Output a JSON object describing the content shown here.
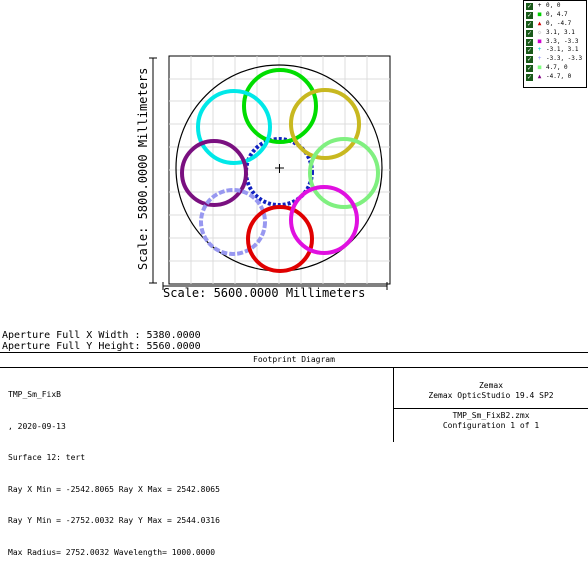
{
  "legend": {
    "items": [
      {
        "symbol": "+",
        "label": "0, 0",
        "color": "#000000"
      },
      {
        "symbol": "■",
        "label": "0, 4.7",
        "color": "#00d000"
      },
      {
        "symbol": "▲",
        "label": "0, -4.7",
        "color": "#d00000"
      },
      {
        "symbol": "◇",
        "label": "3.1, 3.1",
        "color": "#bbbbbb"
      },
      {
        "symbol": "■",
        "label": "3.3, -3.3",
        "color": "#d000d0"
      },
      {
        "symbol": "+",
        "label": "-3.1, 3.1",
        "color": "#00d0d0"
      },
      {
        "symbol": "+",
        "label": "-3.3, -3.3",
        "color": "#9090ff"
      },
      {
        "symbol": "■",
        "label": "4.7, 0",
        "color": "#80ff80"
      },
      {
        "symbol": "▲",
        "label": "-4.7, 0",
        "color": "#800080"
      }
    ]
  },
  "axes": {
    "y_scale": "Scale: 5800.0000 Millimeters",
    "x_scale": "Scale: 5600.0000 Millimeters"
  },
  "aperture": {
    "x_width": "Aperture Full X Width : 5380.0000",
    "y_height": "Aperture Full Y Height: 5560.0000"
  },
  "footer": {
    "title": "Footprint Diagram",
    "lines": [
      "TMP_Sm_FixB",
      ", 2020-09-13",
      "Surface 12: tert",
      "Ray X Min = -2542.8065 Ray X Max = 2542.8065",
      "Ray Y Min = -2752.0032 Ray Y Max = 2544.0316",
      "Max Radius= 2752.0032 Wavelength= 1000.0000"
    ],
    "company": "Zemax",
    "product": "Zemax OpticStudio 19.4 SP2",
    "filename": "TMP_Sm_FixB2.zmx",
    "configuration": "Configuration 1 of 1"
  },
  "colors": {
    "center": "#1020c0",
    "green_top": "#00dd00",
    "cyan": "#00e8e8",
    "olive": "#c8b820",
    "purple": "#7a1080",
    "lightgreen": "#80f080",
    "lavender": "#9898f0",
    "red": "#e00000",
    "magenta": "#e010e0"
  }
}
